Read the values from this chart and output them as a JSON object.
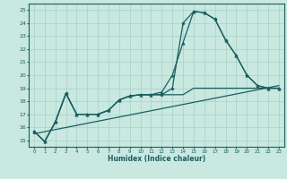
{
  "xlabel": "Humidex (Indice chaleur)",
  "xlim": [
    -0.5,
    23.5
  ],
  "ylim": [
    14.5,
    25.5
  ],
  "xticks": [
    0,
    1,
    2,
    3,
    4,
    5,
    6,
    7,
    8,
    9,
    10,
    11,
    12,
    13,
    14,
    15,
    16,
    17,
    18,
    19,
    20,
    21,
    22,
    23
  ],
  "yticks": [
    15,
    16,
    17,
    18,
    19,
    20,
    21,
    22,
    23,
    24,
    25
  ],
  "bg_color": "#c8e8e0",
  "line_color": "#1a5f5f",
  "grid_color": "#a8d0c8",
  "series": [
    {
      "x": [
        0,
        1,
        2,
        3,
        4,
        5,
        6,
        7,
        8,
        9,
        10,
        11,
        12,
        13,
        14,
        15,
        16,
        17,
        18,
        19,
        20,
        21,
        22,
        23
      ],
      "y": [
        15.7,
        14.9,
        16.4,
        18.6,
        17.0,
        17.0,
        17.0,
        17.3,
        18.1,
        18.4,
        18.5,
        18.5,
        18.5,
        19.0,
        24.0,
        24.9,
        24.8,
        24.3,
        22.7,
        21.5,
        20.0,
        19.2,
        19.0,
        19.0
      ],
      "marker": "D",
      "markersize": 1.8,
      "linewidth": 0.9
    },
    {
      "x": [
        0,
        1,
        2,
        3,
        4,
        5,
        6,
        7,
        8,
        9,
        10,
        11,
        12,
        13,
        14,
        15,
        16,
        17,
        18,
        19,
        20,
        21,
        22,
        23
      ],
      "y": [
        15.7,
        14.9,
        16.4,
        18.6,
        17.0,
        17.0,
        17.0,
        17.3,
        18.1,
        18.4,
        18.5,
        18.5,
        18.7,
        20.0,
        22.5,
        24.9,
        24.8,
        24.3,
        22.7,
        21.5,
        20.0,
        19.2,
        19.0,
        19.0
      ],
      "marker": "^",
      "markersize": 2.5,
      "linewidth": 0.9
    },
    {
      "x": [
        0,
        1,
        2,
        3,
        4,
        5,
        6,
        7,
        8,
        9,
        10,
        11,
        12,
        13,
        14,
        15,
        16,
        17,
        18,
        19,
        20,
        21,
        22,
        23
      ],
      "y": [
        15.7,
        14.9,
        16.4,
        18.6,
        17.0,
        17.0,
        17.0,
        17.3,
        18.1,
        18.4,
        18.5,
        18.5,
        18.5,
        18.5,
        18.5,
        19.0,
        19.0,
        19.0,
        19.0,
        19.0,
        19.0,
        19.0,
        19.0,
        19.0
      ],
      "marker": null,
      "markersize": 0,
      "linewidth": 0.9
    },
    {
      "x": [
        0,
        23
      ],
      "y": [
        15.5,
        19.2
      ],
      "marker": null,
      "markersize": 0,
      "linewidth": 0.9
    }
  ]
}
